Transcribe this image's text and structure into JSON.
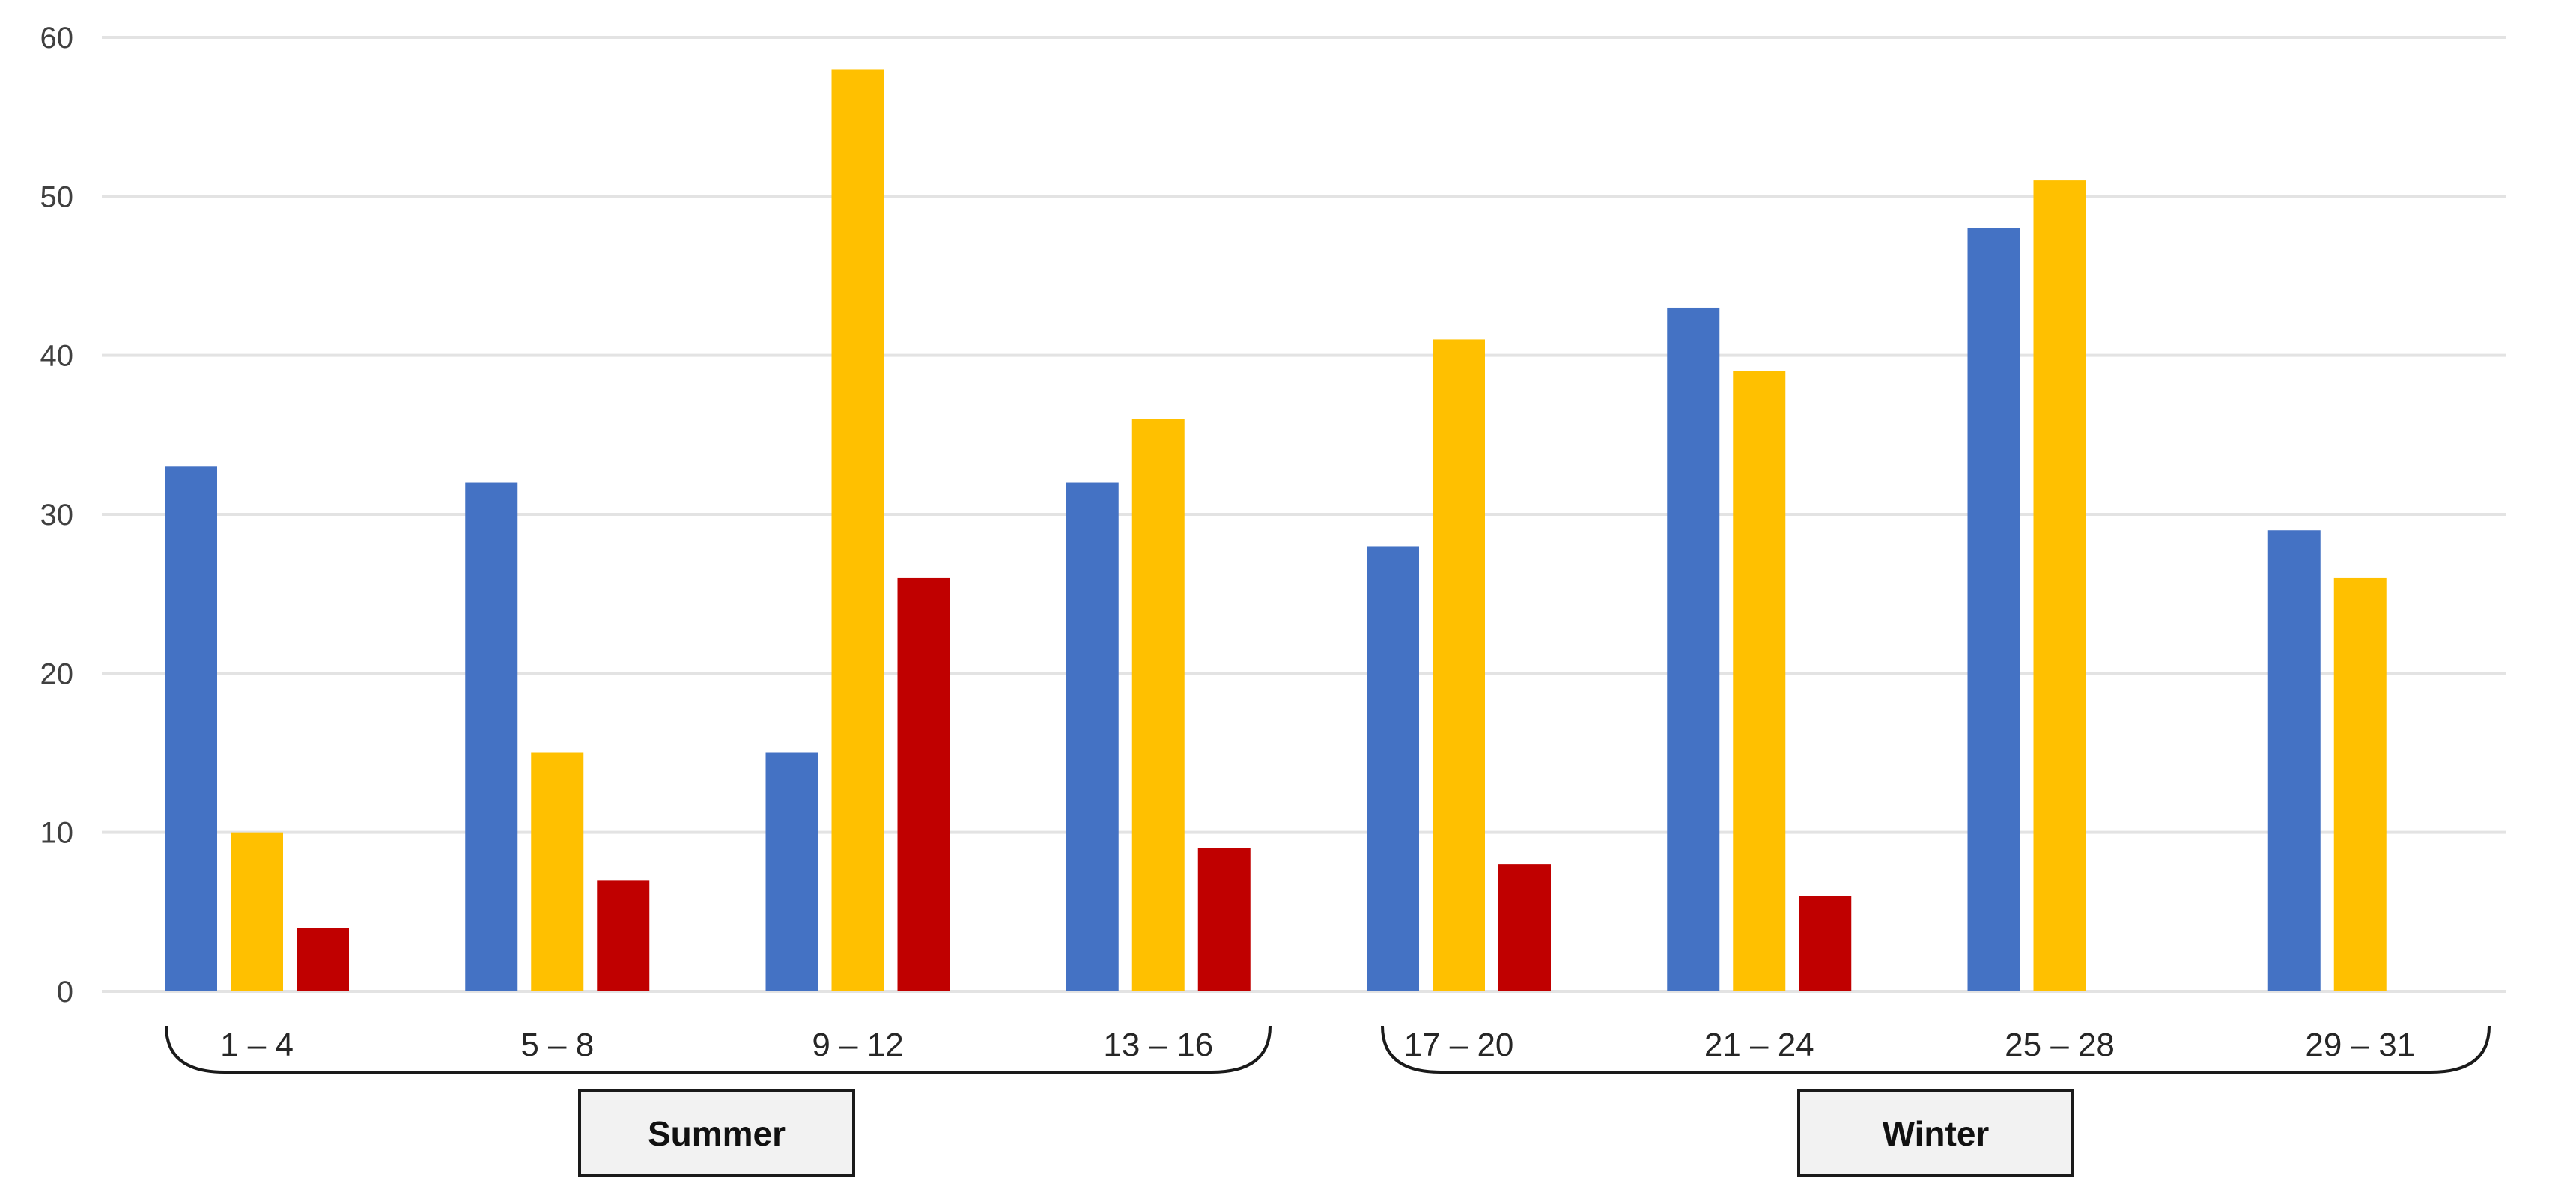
{
  "chart_data": {
    "type": "bar",
    "categories": [
      "1 – 4",
      "5 – 8",
      "9 – 12",
      "13 – 16",
      "17 – 20",
      "21 – 24",
      "25 – 28",
      "29 – 31"
    ],
    "series": [
      {
        "color": "#4472C4",
        "values": [
          33,
          32,
          15,
          32,
          28,
          43,
          48,
          29
        ]
      },
      {
        "color": "#FFC000",
        "values": [
          10,
          15,
          58,
          36,
          41,
          39,
          51,
          26
        ]
      },
      {
        "color": "#C00000",
        "values": [
          4,
          7,
          26,
          9,
          8,
          6,
          null,
          null
        ]
      }
    ],
    "ylim": [
      0,
      60
    ],
    "yticks": [
      0,
      10,
      20,
      30,
      40,
      50,
      60
    ],
    "grid": true,
    "groups": [
      {
        "label": "Summer",
        "categories": [
          "1 – 4",
          "5 – 8",
          "9 – 12",
          "13 – 16"
        ]
      },
      {
        "label": "Winter",
        "categories": [
          "17 – 20",
          "21 – 24",
          "25 – 28",
          "29 – 31"
        ]
      }
    ]
  }
}
